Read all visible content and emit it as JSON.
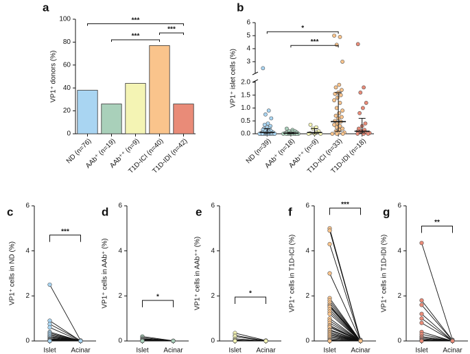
{
  "chart_data": [
    {
      "type": "bar",
      "panel": "a",
      "ylabel": "VP1⁺ donors (%)",
      "categories": [
        "ND (n=76)",
        "AAb⁺ (n=19)",
        "AAb⁺⁺ (n=9)",
        "T1D-ICI (n=40)",
        "T1D-IDI (n=42)"
      ],
      "values": [
        38,
        26,
        44,
        77,
        26
      ],
      "colors": [
        "#a9d5f2",
        "#a9d0ba",
        "#f4f4b4",
        "#fac48c",
        "#e98b78"
      ],
      "ylim": [
        0,
        100
      ],
      "yticks": [
        0,
        20,
        40,
        60,
        80,
        100
      ],
      "annotations": [
        {
          "label": "***",
          "from": 0,
          "to": 4,
          "y": 96
        },
        {
          "label": "***",
          "from": 1,
          "to": 3,
          "y": 82
        },
        {
          "label": "***",
          "from": 3,
          "to": 4,
          "y": 88
        }
      ]
    },
    {
      "type": "dot",
      "panel": "b",
      "ylabel": "VP1⁺ islet cells (%)",
      "categories": [
        "ND (n=39)",
        "AAb⁺ (n=18)",
        "AAb⁺⁺ (n=9)",
        "T1D-ICI (n=33)",
        "T1D-IDI (n=18)"
      ],
      "colors": [
        "#a9d5f2",
        "#a9d0ba",
        "#f4f4b4",
        "#fac48c",
        "#e98b78"
      ],
      "values": [
        [
          2.5,
          0.9,
          0.75,
          0.6,
          0.4,
          0.35,
          0.3,
          0.25,
          0.2,
          0.2,
          0.15,
          0.15,
          0.1,
          0.1,
          0.1,
          0.08,
          0.05,
          0.05,
          0.05,
          0.03,
          0.02,
          0,
          0,
          0,
          0,
          0,
          0,
          0,
          0,
          0,
          0,
          0,
          0,
          0,
          0,
          0,
          0,
          0,
          0
        ],
        [
          0.2,
          0.15,
          0.1,
          0.1,
          0.08,
          0.05,
          0.05,
          0.03,
          0.02,
          0,
          0,
          0,
          0,
          0,
          0,
          0,
          0,
          0
        ],
        [
          0.35,
          0.25,
          0.2,
          0.1,
          0.05,
          0.02,
          0,
          0,
          0
        ],
        [
          5.0,
          4.9,
          4.3,
          3.0,
          1.9,
          1.8,
          1.7,
          1.6,
          1.55,
          1.5,
          1.4,
          1.3,
          1.2,
          1.0,
          0.9,
          0.8,
          0.7,
          0.65,
          0.6,
          0.5,
          0.47,
          0.4,
          0.35,
          0.3,
          0.25,
          0.2,
          0.15,
          0.1,
          0.05,
          0.03,
          0,
          0,
          0
        ],
        [
          4.35,
          1.8,
          1.6,
          1.2,
          1.0,
          0.8,
          0.4,
          0.3,
          0.2,
          0.15,
          0.1,
          0.1,
          0.05,
          0.05,
          0.03,
          0,
          0,
          0
        ]
      ],
      "median": [
        0.05,
        0.02,
        0.05,
        0.47,
        0.1
      ],
      "q1": [
        0,
        0,
        0,
        0.1,
        0.03
      ],
      "q3": [
        0.2,
        0.05,
        0.2,
        1.6,
        0.6
      ],
      "ylim": [
        0,
        2.05
      ],
      "ylim_upper": [
        2.1,
        6
      ],
      "yticks": [
        {
          "value": 0,
          "label": "0.0"
        },
        {
          "value": 0.5,
          "label": "0.5"
        },
        {
          "value": 1,
          "label": "1.0"
        },
        {
          "value": 1.5,
          "label": "1.5"
        },
        {
          "value": 2,
          "label": "2.0"
        },
        3,
        4,
        5,
        6
      ],
      "annotations": [
        {
          "label": "*",
          "from": 0,
          "to": 3,
          "y": 5.3
        },
        {
          "label": "***",
          "from": 1,
          "to": 3,
          "y": 4.25
        }
      ]
    },
    {
      "type": "paired",
      "panel": "c",
      "ylabel": "VP1⁺ cells in ND (%)",
      "color": "#a9d5f2",
      "categories": [
        "Islet",
        "Acinar"
      ],
      "islet": [
        2.5,
        0.9,
        0.75,
        0.6,
        0.4,
        0.35,
        0.3,
        0.25,
        0.2,
        0.2,
        0.15,
        0.15,
        0.1,
        0.1,
        0.1,
        0.08,
        0.05,
        0.05,
        0.05,
        0.03,
        0.02,
        0,
        0,
        0,
        0,
        0,
        0,
        0,
        0,
        0,
        0,
        0,
        0,
        0,
        0,
        0,
        0,
        0,
        0
      ],
      "acinar": [
        0.02,
        0,
        0.02,
        0,
        0,
        0.01,
        0,
        0,
        0,
        0,
        0,
        0,
        0,
        0,
        0,
        0,
        0,
        0,
        0,
        0,
        0,
        0,
        0,
        0,
        0,
        0,
        0,
        0,
        0,
        0,
        0,
        0,
        0,
        0,
        0,
        0,
        0,
        0,
        0
      ],
      "ylim": [
        0,
        6
      ],
      "yticks": [
        0,
        2,
        4,
        6
      ],
      "annotations": [
        {
          "label": "***",
          "from": 0,
          "to": 1,
          "y": 4.7
        }
      ]
    },
    {
      "type": "paired",
      "panel": "d",
      "ylabel": "VP1⁺ cells in AAb⁺ (%)",
      "color": "#a9d0ba",
      "categories": [
        "Islet",
        "Acinar"
      ],
      "islet": [
        0.2,
        0.15,
        0.1,
        0.1,
        0.08,
        0.05,
        0.05,
        0.03,
        0.02,
        0,
        0,
        0,
        0,
        0,
        0,
        0,
        0,
        0
      ],
      "acinar": [
        0.01,
        0,
        0,
        0,
        0,
        0,
        0,
        0,
        0,
        0,
        0,
        0,
        0,
        0,
        0,
        0,
        0,
        0
      ],
      "ylim": [
        0,
        6
      ],
      "yticks": [
        0,
        2,
        4,
        6
      ],
      "annotations": [
        {
          "label": "*",
          "from": 0,
          "to": 1,
          "y": 1.8
        }
      ]
    },
    {
      "type": "paired",
      "panel": "e",
      "ylabel": "VP1⁺ cells in AAb⁺⁺ (%)",
      "color": "#f4f4b4",
      "categories": [
        "Islet",
        "Acinar"
      ],
      "islet": [
        0.35,
        0.25,
        0.2,
        0.1,
        0.05,
        0.02,
        0,
        0,
        0
      ],
      "acinar": [
        0.02,
        0,
        0,
        0,
        0,
        0,
        0,
        0,
        0
      ],
      "ylim": [
        0,
        6
      ],
      "yticks": [
        0,
        2,
        4,
        6
      ],
      "annotations": [
        {
          "label": "*",
          "from": 0,
          "to": 1,
          "y": 1.95
        }
      ]
    },
    {
      "type": "paired",
      "panel": "f",
      "ylabel": "VP1⁺ cells in T1D-ICI (%)",
      "color": "#fac48c",
      "categories": [
        "Islet",
        "Acinar"
      ],
      "islet": [
        5.0,
        4.9,
        4.3,
        3.0,
        1.9,
        1.8,
        1.7,
        1.6,
        1.55,
        1.5,
        1.4,
        1.3,
        1.2,
        1.0,
        0.9,
        0.8,
        0.7,
        0.65,
        0.6,
        0.5,
        0.47,
        0.4,
        0.35,
        0.3,
        0.25,
        0.2,
        0.15,
        0.1,
        0.05,
        0.03,
        0,
        0,
        0
      ],
      "acinar": [
        0.05,
        0.03,
        0.02,
        0.02,
        0,
        0,
        0,
        0,
        0,
        0,
        0,
        0,
        0,
        0,
        0,
        0,
        0,
        0,
        0,
        0,
        0,
        0,
        0,
        0,
        0,
        0,
        0,
        0,
        0,
        0,
        0,
        0,
        0
      ],
      "ylim": [
        0,
        6
      ],
      "yticks": [
        0,
        2,
        4,
        6
      ],
      "annotations": [
        {
          "label": "***",
          "from": 0,
          "to": 1,
          "y": 5.9
        }
      ]
    },
    {
      "type": "paired",
      "panel": "g",
      "ylabel": "VP1⁺ cells in T1D-IDI (%)",
      "color": "#e98b78",
      "categories": [
        "Islet",
        "Acinar"
      ],
      "islet": [
        4.35,
        1.8,
        1.6,
        1.2,
        1.0,
        0.8,
        0.4,
        0.3,
        0.2,
        0.15,
        0.1,
        0.1,
        0.05,
        0.05,
        0.03,
        0,
        0,
        0
      ],
      "acinar": [
        0.05,
        0.03,
        0.02,
        0,
        0,
        0,
        0,
        0,
        0,
        0,
        0,
        0,
        0,
        0,
        0,
        0,
        0,
        0
      ],
      "ylim": [
        0,
        6
      ],
      "yticks": [
        0,
        2,
        4,
        6
      ],
      "annotations": [
        {
          "label": "**",
          "from": 0,
          "to": 1,
          "y": 5.1
        }
      ]
    }
  ]
}
